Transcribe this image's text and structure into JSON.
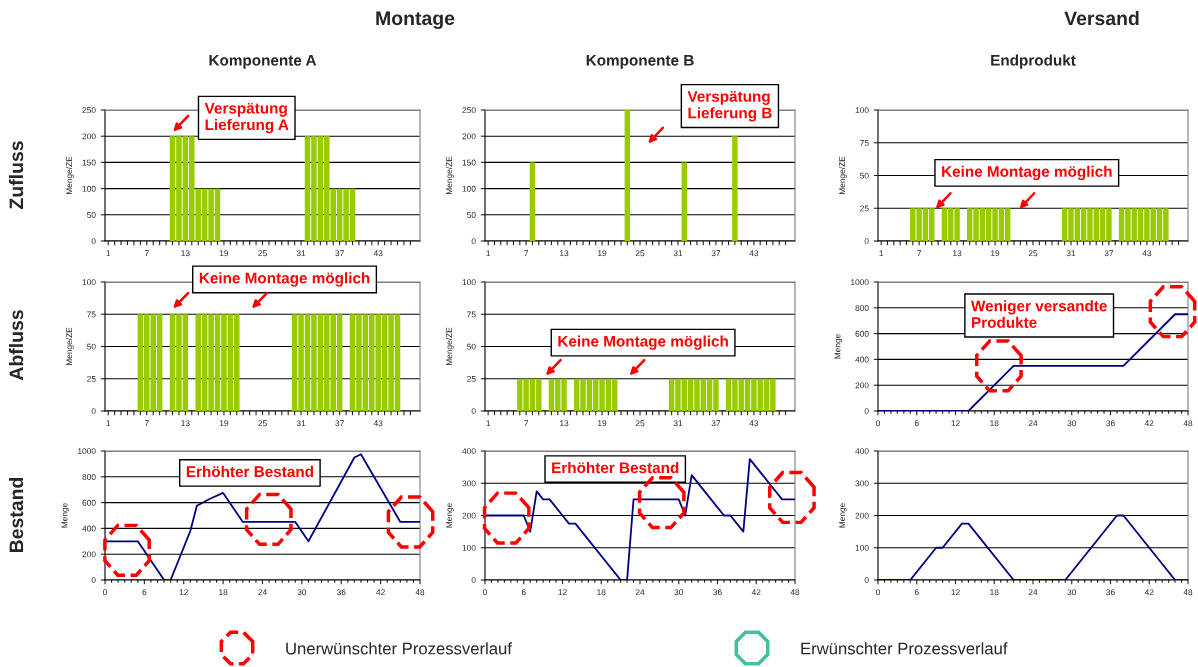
{
  "chart_data": [
    {
      "type": "bar",
      "title": "Komponente A",
      "ylabel": "Menge/ZE",
      "categories": [
        "1",
        null,
        null,
        null,
        null,
        null,
        "7",
        null,
        null,
        null,
        null,
        null,
        "13",
        null,
        null,
        null,
        null,
        null,
        "19",
        null,
        null,
        null,
        null,
        null,
        "25",
        null,
        null,
        null,
        null,
        null,
        "31",
        null,
        null,
        null,
        null,
        null,
        "37",
        null,
        null,
        null,
        null,
        null,
        "43",
        null,
        null,
        null,
        null,
        null
      ],
      "values": [
        0,
        0,
        0,
        0,
        0,
        0,
        0,
        0,
        0,
        0,
        200,
        200,
        200,
        200,
        100,
        100,
        100,
        100,
        0,
        0,
        0,
        0,
        0,
        0,
        0,
        0,
        0,
        0,
        0,
        0,
        0,
        200,
        200,
        200,
        200,
        100,
        100,
        100,
        100,
        0,
        0,
        0,
        0,
        0,
        0,
        0,
        0,
        0
      ],
      "color": "#99cc00",
      "ylim": [
        0,
        250
      ],
      "yticks": [
        0,
        50,
        100,
        150,
        200,
        250
      ],
      "grid": "y",
      "annotations": [
        "Verspätung\nLieferung A"
      ]
    },
    {
      "type": "bar",
      "title": "Komponente B",
      "ylabel": "Menge/ZE",
      "categories": [
        "1",
        null,
        null,
        null,
        null,
        null,
        "7",
        null,
        null,
        null,
        null,
        null,
        "13",
        null,
        null,
        null,
        null,
        null,
        "19",
        null,
        null,
        null,
        null,
        null,
        "25",
        null,
        null,
        null,
        null,
        null,
        "31",
        null,
        null,
        null,
        null,
        null,
        "37",
        null,
        null,
        null,
        null,
        null,
        "43",
        null,
        null,
        null,
        null,
        null
      ],
      "values": [
        0,
        0,
        0,
        0,
        0,
        0,
        0,
        150,
        0,
        0,
        0,
        0,
        0,
        0,
        0,
        0,
        0,
        0,
        0,
        0,
        0,
        0,
        250,
        0,
        0,
        0,
        0,
        0,
        0,
        0,
        0,
        150,
        0,
        0,
        0,
        0,
        0,
        0,
        0,
        200,
        0,
        0,
        0,
        0,
        0,
        0,
        0,
        0
      ],
      "color": "#99cc00",
      "ylim": [
        0,
        250
      ],
      "yticks": [
        0,
        50,
        100,
        150,
        200,
        250
      ],
      "grid": "y",
      "annotations": [
        "Verspätung\nLieferung B"
      ]
    },
    {
      "type": "bar",
      "title": "Endprodukt",
      "ylabel": "Menge/ZE",
      "categories": [
        "1",
        null,
        null,
        null,
        null,
        null,
        "7",
        null,
        null,
        null,
        null,
        null,
        "13",
        null,
        null,
        null,
        null,
        null,
        "19",
        null,
        null,
        null,
        null,
        null,
        "25",
        null,
        null,
        null,
        null,
        null,
        "31",
        null,
        null,
        null,
        null,
        null,
        "37",
        null,
        null,
        null,
        null,
        null,
        "43",
        null,
        null,
        null,
        null,
        null
      ],
      "values": [
        0,
        0,
        0,
        0,
        0,
        25,
        25,
        25,
        25,
        0,
        25,
        25,
        25,
        0,
        25,
        25,
        25,
        25,
        25,
        25,
        25,
        0,
        0,
        0,
        0,
        0,
        0,
        0,
        0,
        25,
        25,
        25,
        25,
        25,
        25,
        25,
        25,
        0,
        25,
        25,
        25,
        25,
        25,
        25,
        25,
        25,
        0,
        0
      ],
      "color": "#99cc00",
      "ylim": [
        0,
        100
      ],
      "yticks": [
        0,
        25,
        50,
        75,
        100
      ],
      "grid": "y",
      "annotations": [
        "Keine Montage möglich"
      ]
    },
    {
      "type": "bar",
      "ylabel": "Menge/ZE",
      "categories": [
        "1",
        null,
        null,
        null,
        null,
        null,
        "7",
        null,
        null,
        null,
        null,
        null,
        "13",
        null,
        null,
        null,
        null,
        null,
        "19",
        null,
        null,
        null,
        null,
        null,
        "25",
        null,
        null,
        null,
        null,
        null,
        "31",
        null,
        null,
        null,
        null,
        null,
        "37",
        null,
        null,
        null,
        null,
        null,
        "43",
        null,
        null,
        null,
        null,
        null
      ],
      "values": [
        0,
        0,
        0,
        0,
        0,
        75,
        75,
        75,
        75,
        0,
        75,
        75,
        75,
        0,
        75,
        75,
        75,
        75,
        75,
        75,
        75,
        0,
        0,
        0,
        0,
        0,
        0,
        0,
        0,
        75,
        75,
        75,
        75,
        75,
        75,
        75,
        75,
        0,
        75,
        75,
        75,
        75,
        75,
        75,
        75,
        75,
        0,
        0
      ],
      "color": "#99cc00",
      "ylim": [
        0,
        100
      ],
      "yticks": [
        0,
        25,
        50,
        75,
        100
      ],
      "grid": "y",
      "annotations": [
        "Keine Montage möglich"
      ]
    },
    {
      "type": "bar",
      "ylabel": "Menge/ZE",
      "categories": [
        "1",
        null,
        null,
        null,
        null,
        null,
        "7",
        null,
        null,
        null,
        null,
        null,
        "13",
        null,
        null,
        null,
        null,
        null,
        "19",
        null,
        null,
        null,
        null,
        null,
        "25",
        null,
        null,
        null,
        null,
        null,
        "31",
        null,
        null,
        null,
        null,
        null,
        "37",
        null,
        null,
        null,
        null,
        null,
        "43",
        null,
        null,
        null,
        null,
        null
      ],
      "values": [
        0,
        0,
        0,
        0,
        0,
        25,
        25,
        25,
        25,
        0,
        25,
        25,
        25,
        0,
        25,
        25,
        25,
        25,
        25,
        25,
        25,
        0,
        0,
        0,
        0,
        0,
        0,
        0,
        0,
        25,
        25,
        25,
        25,
        25,
        25,
        25,
        25,
        0,
        25,
        25,
        25,
        25,
        25,
        25,
        25,
        25,
        0,
        0
      ],
      "color": "#99cc00",
      "ylim": [
        0,
        100
      ],
      "yticks": [
        0,
        25,
        50,
        75,
        100
      ],
      "grid": "y",
      "annotations": [
        "Keine Montage möglich"
      ]
    },
    {
      "type": "line",
      "ylabel": "Menge",
      "x": [
        0,
        14,
        21,
        38,
        46,
        48
      ],
      "values": [
        0,
        0,
        350,
        350,
        750,
        750
      ],
      "color": "#000080",
      "xlim": [
        0,
        48
      ],
      "xticks": [
        0,
        6,
        12,
        18,
        24,
        30,
        36,
        42,
        48
      ],
      "ylim": [
        0,
        1000
      ],
      "yticks": [
        0,
        200,
        400,
        600,
        800,
        1000
      ],
      "grid": "y",
      "annotations": [
        "Weniger versandte\nProdukte"
      ]
    },
    {
      "type": "line",
      "ylabel": "Menge",
      "x": [
        0,
        5,
        9,
        10,
        13,
        14,
        16,
        18,
        21,
        29,
        31,
        38,
        39,
        45,
        48
      ],
      "values": [
        300,
        300,
        0,
        0,
        380,
        575,
        630,
        675,
        450,
        450,
        300,
        950,
        975,
        450,
        450
      ],
      "color": "#000080",
      "xlim": [
        0,
        48
      ],
      "xticks": [
        0,
        6,
        12,
        18,
        24,
        30,
        36,
        42,
        48
      ],
      "ylim": [
        0,
        1000
      ],
      "yticks": [
        0,
        200,
        400,
        600,
        800,
        1000
      ],
      "grid": "y",
      "annotations": [
        "Erhöhter Bestand"
      ]
    },
    {
      "type": "line",
      "ylabel": "Menge",
      "x": [
        0,
        6,
        7,
        8,
        9,
        10,
        12,
        13,
        14,
        21,
        22,
        23,
        30,
        31,
        32,
        35,
        37,
        38,
        40,
        41,
        44,
        46,
        48
      ],
      "values": [
        200,
        200,
        150,
        275,
        250,
        250,
        200,
        175,
        175,
        0,
        0,
        250,
        250,
        200,
        325,
        250,
        200,
        200,
        150,
        375,
        300,
        250,
        250
      ],
      "color": "#000080",
      "xlim": [
        0,
        48
      ],
      "xticks": [
        0,
        6,
        12,
        18,
        24,
        30,
        36,
        42,
        48
      ],
      "ylim": [
        0,
        400
      ],
      "yticks": [
        0,
        100,
        200,
        300,
        400
      ],
      "grid": "y",
      "annotations": [
        "Erhöhter Bestand"
      ]
    },
    {
      "type": "line",
      "ylabel": "Menge",
      "x": [
        0,
        5,
        9,
        10,
        13,
        14,
        21,
        29,
        37,
        38,
        46,
        48
      ],
      "values": [
        0,
        0,
        100,
        100,
        175,
        175,
        0,
        0,
        200,
        200,
        0,
        0
      ],
      "color": "#000080",
      "xlim": [
        0,
        48
      ],
      "xticks": [
        0,
        6,
        12,
        18,
        24,
        30,
        36,
        42,
        48
      ],
      "ylim": [
        0,
        400
      ],
      "yticks": [
        0,
        100,
        200,
        300,
        400
      ],
      "grid": "y"
    },
    {
      "type": "other",
      "annotations": [
        "Montage",
        "Versand",
        "Zufluss",
        "Abfluss",
        "Bestand",
        "Unerwünschter Prozessverlauf",
        "Erwünschter Prozessverlauf"
      ]
    }
  ]
}
